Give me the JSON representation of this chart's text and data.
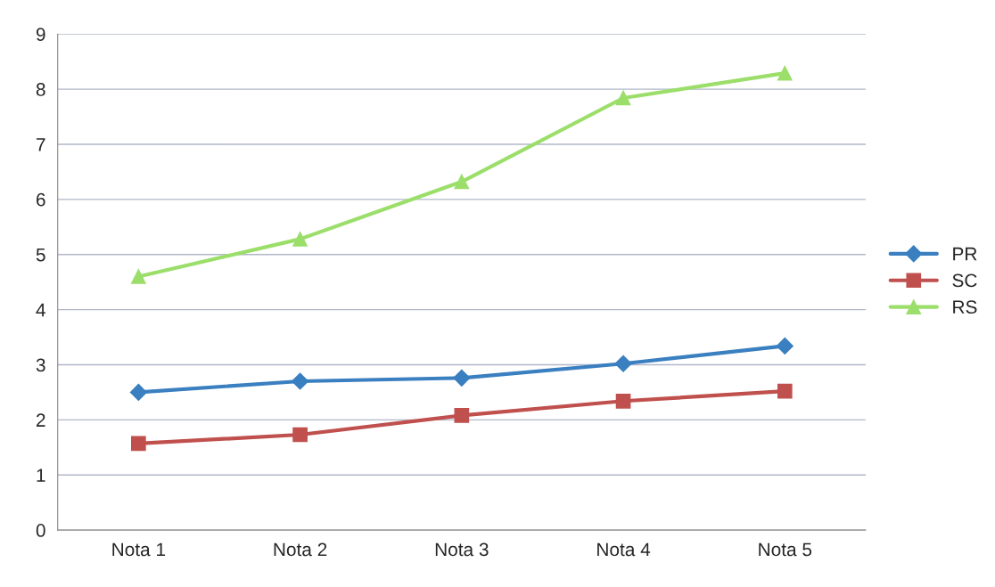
{
  "chart_data": {
    "type": "line",
    "categories": [
      "Nota 1",
      "Nota 2",
      "Nota 3",
      "Nota 4",
      "Nota 5"
    ],
    "series": [
      {
        "name": "PR",
        "color": "#3a7fc0",
        "marker": "diamond",
        "values": [
          2.5,
          2.7,
          2.76,
          3.02,
          3.34
        ]
      },
      {
        "name": "SC",
        "color": "#c0504d",
        "marker": "square",
        "values": [
          1.57,
          1.73,
          2.08,
          2.34,
          2.52
        ]
      },
      {
        "name": "RS",
        "color": "#9bde6a",
        "marker": "triangle",
        "values": [
          4.6,
          5.28,
          6.32,
          7.84,
          8.29
        ]
      }
    ],
    "ylim": [
      0,
      9
    ],
    "yticks": [
      0,
      1,
      2,
      3,
      4,
      5,
      6,
      7,
      8,
      9
    ],
    "grid": "y",
    "legend": "right",
    "line_style": "solid"
  }
}
